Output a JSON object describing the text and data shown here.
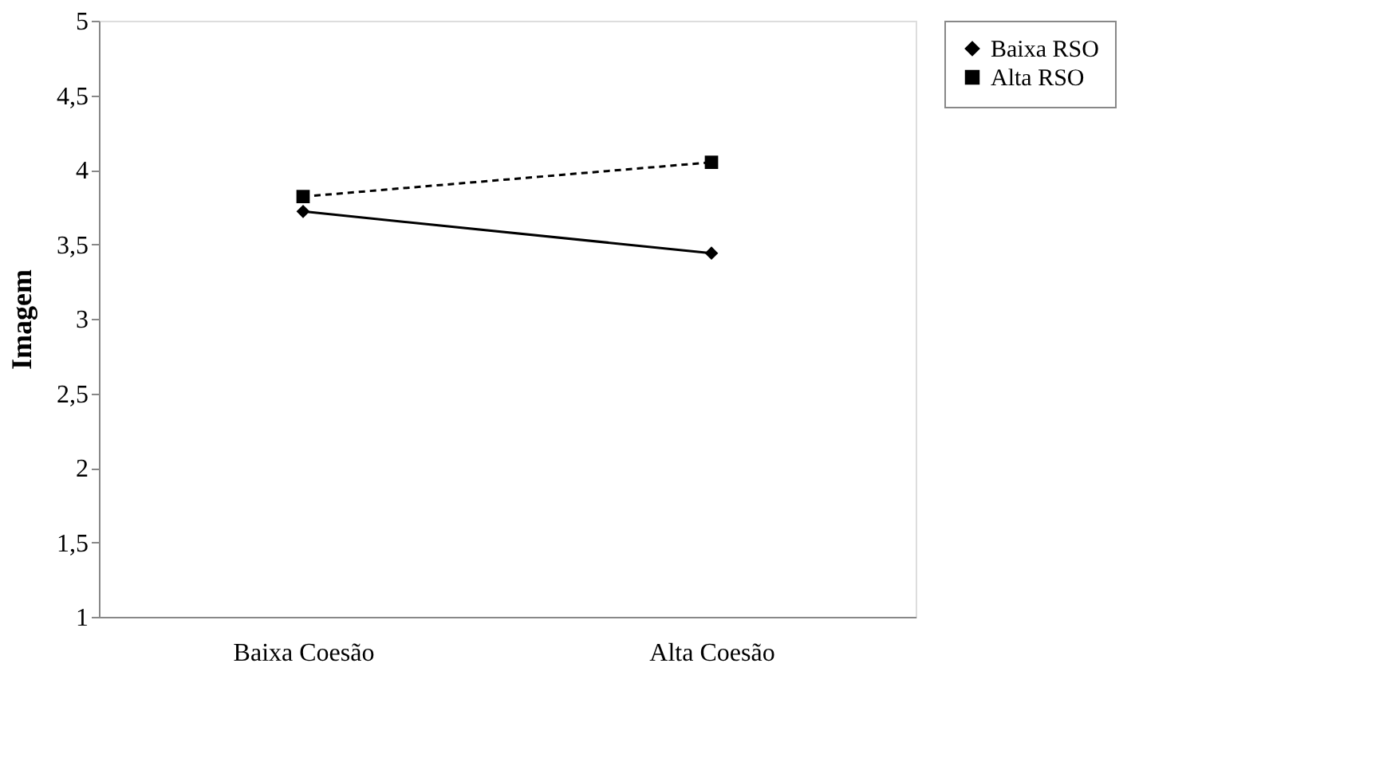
{
  "chart_data": {
    "type": "line",
    "ylabel": "Imagem",
    "categories": [
      "Baixa Coesão",
      "Alta Coesão"
    ],
    "series": [
      {
        "name": "Baixa RSO",
        "color": "#000000",
        "values": [
          3.72,
          3.44
        ],
        "marker": "diamond",
        "line_style": "solid"
      },
      {
        "name": "Alta RSO",
        "color": "#000000",
        "values": [
          3.82,
          4.05
        ],
        "marker": "square",
        "line_style": "dashed"
      }
    ],
    "ylim": [
      1,
      5
    ],
    "yticks": [
      1,
      {
        "value": 1.5,
        "label": "1,5"
      },
      2,
      {
        "value": 2.5,
        "label": "2,5"
      },
      3,
      {
        "value": 3.5,
        "label": "3,5"
      },
      4,
      {
        "value": 4.5,
        "label": "4,5"
      },
      5
    ],
    "grid": false,
    "legend": "right"
  }
}
